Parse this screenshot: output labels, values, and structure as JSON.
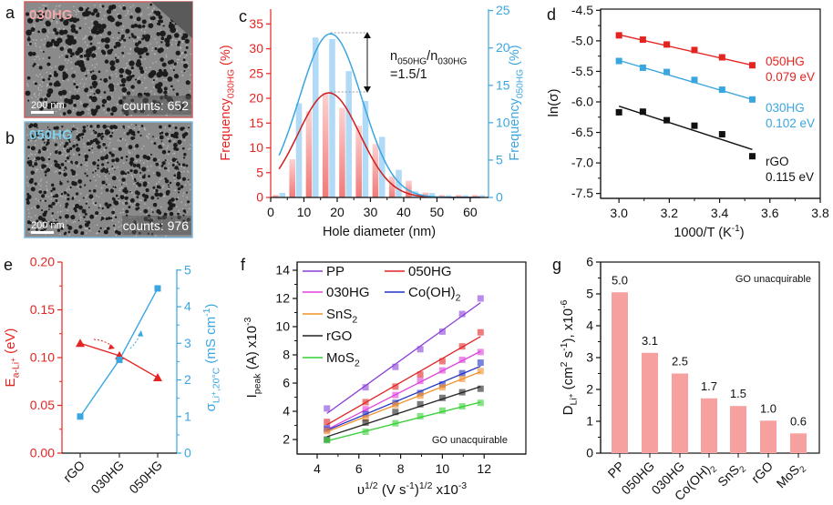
{
  "panel_letters": {
    "a": "a",
    "b": "b",
    "c": "c",
    "d": "d",
    "e": "e",
    "f": "f",
    "g": "g"
  },
  "colors": {
    "red": "#e52421",
    "blue": "#3aa6e0",
    "black": "#111111",
    "bar_red": "#f6a19f",
    "bar_blue": "#a9d6f5"
  },
  "sem_images": [
    {
      "label": "030HG",
      "scale": "200 nm",
      "counts": "counts: 652",
      "border": "#c9605f",
      "label_color": "#f0a8a8"
    },
    {
      "label": "050HG",
      "scale": "200 nm",
      "counts": "counts: 976",
      "border": "#7fb9dc",
      "label_color": "#7fd0ee"
    }
  ],
  "chart_data": [
    {
      "id": "c",
      "type": "bar",
      "xlabel": "Hole diameter (nm)",
      "ylabel": [
        [
          "Frequency",
          ""
        ],
        [
          "030HG",
          "sub"
        ],
        [
          " (%)",
          ""
        ]
      ],
      "y2label": [
        [
          "Frequency",
          ""
        ],
        [
          "050HG",
          "sub"
        ],
        [
          " (%)",
          ""
        ]
      ],
      "xlim": [
        0,
        65.5
      ],
      "ylim": [
        0,
        38
      ],
      "y2lim": [
        0,
        25.2
      ],
      "xticks": [
        0,
        10,
        20,
        30,
        40,
        50,
        60
      ],
      "yticks": [
        0,
        5,
        10,
        15,
        20,
        25,
        30,
        35
      ],
      "y2ticks": [
        0,
        5,
        10,
        15,
        20,
        25
      ],
      "bins": [
        2.5,
        7.5,
        12.5,
        17.5,
        22.5,
        27.5,
        32.5,
        37.5,
        42.5,
        47.5,
        52.5,
        57.5,
        62.5
      ],
      "series": [
        {
          "name": "030HG",
          "axis": "left",
          "values": [
            0.5,
            7.7,
            17.4,
            21.1,
            18.1,
            14.5,
            10.8,
            4.3,
            3.4,
            1.0,
            0.5,
            0.5,
            0.5
          ],
          "fit": {
            "peak": 21.1,
            "center": 17.5,
            "sigma": 9.3
          }
        },
        {
          "name": "050HG",
          "axis": "right",
          "values": [
            0.6,
            12.6,
            21.4,
            21.2,
            16.9,
            12.9,
            8.1,
            3.7,
            0.8,
            0.6,
            0.3,
            0.3,
            0.3
          ],
          "fit": {
            "peak": 21.9,
            "center": 18,
            "sigma": 9.4
          }
        }
      ],
      "annotation": {
        "line1": [
          [
            "n",
            ""
          ],
          [
            "050HG",
            "sub"
          ],
          [
            "/n",
            ""
          ],
          [
            "030HG",
            "sub"
          ]
        ],
        "line2": "=1.5/1"
      }
    },
    {
      "id": "d",
      "type": "scatter",
      "xlabel": [
        [
          "1000/T (K",
          ""
        ],
        [
          "-1",
          "sup"
        ],
        [
          ")",
          ""
        ]
      ],
      "ylabel": "ln(σ)",
      "xlim": [
        2.927,
        3.8
      ],
      "ylim": [
        -7.58,
        -4.48
      ],
      "xticks": [
        3.0,
        3.2,
        3.4,
        3.6,
        3.8
      ],
      "yticks": [
        -7.5,
        -7.0,
        -6.5,
        -6.0,
        -5.5,
        -5.0,
        -4.5
      ],
      "x": [
        3.0,
        3.095,
        3.19,
        3.3,
        3.41,
        3.53
      ],
      "series": [
        {
          "name": "050HG",
          "energy": "0.079 eV",
          "color": "#e52421",
          "values": [
            -4.91,
            -4.98,
            -5.06,
            -5.15,
            -5.27,
            -5.4
          ],
          "fit": [
            -4.9,
            -5.4
          ]
        },
        {
          "name": "030HG",
          "energy": "0.102 eV",
          "color": "#3aa6e0",
          "values": [
            -5.33,
            -5.44,
            -5.51,
            -5.64,
            -5.8,
            -5.96
          ],
          "fit": [
            -5.32,
            -5.96
          ]
        },
        {
          "name": "rGO",
          "energy": "0.115 eV",
          "color": "#111111",
          "values": [
            -6.17,
            -6.16,
            -6.3,
            -6.39,
            -6.53,
            -6.89
          ],
          "fit": [
            -6.07,
            -6.78
          ]
        }
      ]
    },
    {
      "id": "e",
      "type": "line",
      "categories": [
        "rGO",
        "030HG",
        "050HG"
      ],
      "ylabel": [
        [
          "E",
          ""
        ],
        [
          "a-Li",
          "sub"
        ],
        [
          "+",
          "subsup"
        ],
        [
          " (eV)",
          ""
        ]
      ],
      "y2label": [
        [
          "σ",
          ""
        ],
        [
          "Li",
          "sub"
        ],
        [
          "+",
          "subsup"
        ],
        [
          ",20°C",
          "sub"
        ],
        [
          " (mS cm",
          ""
        ],
        [
          "-1",
          "sup"
        ],
        [
          ")",
          ""
        ]
      ],
      "ylim": [
        0,
        0.2
      ],
      "y2lim": [
        0,
        5.22
      ],
      "yticks": [
        0.0,
        0.05,
        0.1,
        0.15,
        0.2
      ],
      "y2ticks": [
        0,
        1,
        2,
        3,
        4,
        5
      ],
      "series": [
        {
          "name": "Ea-Li+",
          "axis": "left",
          "values": [
            0.115,
            0.102,
            0.079
          ]
        },
        {
          "name": "σLi+,20°C",
          "axis": "right",
          "values": [
            1.0,
            2.55,
            4.5
          ]
        }
      ]
    },
    {
      "id": "f",
      "type": "scatter",
      "xlabel": [
        [
          "υ",
          ""
        ],
        [
          "1/2",
          "sup"
        ],
        [
          " (V s",
          ""
        ],
        [
          "-1",
          "sup"
        ],
        [
          ")",
          ""
        ],
        [
          "1/2",
          "sup"
        ],
        [
          " x10",
          ""
        ],
        [
          "-3",
          "sup"
        ]
      ],
      "ylabel": [
        [
          "I",
          ""
        ],
        [
          "peak",
          "sub"
        ],
        [
          " (A) x10",
          ""
        ],
        [
          "-3",
          "sup"
        ]
      ],
      "xlim": [
        3.04,
        14.0
      ],
      "ylim": [
        0.97,
        14.58
      ],
      "xticks": [
        4,
        6,
        8,
        10,
        12
      ],
      "yticks": [
        2,
        4,
        6,
        8,
        10,
        12,
        14
      ],
      "x": [
        4.47,
        6.32,
        7.75,
        8.94,
        10.0,
        10.95,
        11.83
      ],
      "note": "GO unacquirable",
      "series": [
        {
          "name": [
            [
              "PP",
              ""
            ]
          ],
          "color": "#8a3fd8",
          "values": [
            4.2,
            5.7,
            7.15,
            8.4,
            9.65,
            10.9,
            12.0
          ],
          "fit": [
            3.85,
            11.7
          ]
        },
        {
          "name": [
            [
              "050HG",
              ""
            ]
          ],
          "color": "#e02424",
          "values": [
            3.25,
            4.65,
            5.75,
            6.6,
            7.55,
            8.6,
            9.6
          ],
          "fit": [
            3.05,
            9.3
          ]
        },
        {
          "name": [
            [
              "030HG",
              ""
            ]
          ],
          "color": "#e040dc",
          "values": [
            2.7,
            4.15,
            5.15,
            6.15,
            6.9,
            7.65,
            8.2
          ],
          "fit": [
            2.7,
            8.25
          ]
        },
        {
          "name": [
            [
              "Co(OH)",
              ""
            ],
            [
              "2",
              "sub"
            ]
          ],
          "color": "#2232c4",
          "values": [
            2.8,
            3.8,
            4.6,
            5.3,
            5.9,
            6.7,
            7.45
          ],
          "fit": [
            2.65,
            7.2
          ]
        },
        {
          "name": [
            [
              "SnS",
              ""
            ],
            [
              "2",
              "sub"
            ]
          ],
          "color": "#f0902a",
          "values": [
            2.6,
            3.5,
            4.45,
            5.1,
            5.7,
            6.3,
            6.85
          ],
          "fit": [
            2.55,
            6.8
          ]
        },
        {
          "name": [
            [
              "rGO",
              ""
            ]
          ],
          "color": "#222222",
          "values": [
            2.0,
            3.2,
            3.95,
            4.5,
            4.95,
            5.35,
            5.6
          ],
          "fit": [
            2.2,
            5.75
          ]
        },
        {
          "name": [
            [
              "MoS",
              ""
            ],
            [
              "2",
              "sub"
            ]
          ],
          "color": "#34d034",
          "values": [
            1.95,
            2.55,
            3.15,
            3.65,
            4.05,
            4.35,
            4.6
          ],
          "fit": [
            1.9,
            4.65
          ]
        }
      ]
    },
    {
      "id": "g",
      "type": "bar",
      "ylabel": [
        [
          "D",
          ""
        ],
        [
          "Li",
          "sub"
        ],
        [
          "+",
          "subsup"
        ],
        [
          " (cm",
          ""
        ],
        [
          "2",
          "sup"
        ],
        [
          " s",
          ""
        ],
        [
          "-1",
          "sup"
        ],
        [
          "), x10",
          ""
        ],
        [
          "-6",
          "sup"
        ]
      ],
      "ylim": [
        0,
        6
      ],
      "yticks": [
        0,
        1,
        2,
        3,
        4,
        5,
        6
      ],
      "note": "GO unacquirable",
      "categories": [
        [
          [
            "PP",
            ""
          ]
        ],
        [
          [
            "050HG",
            ""
          ]
        ],
        [
          [
            "030HG",
            ""
          ]
        ],
        [
          [
            "Co(OH)",
            ""
          ],
          [
            "2",
            "sub"
          ]
        ],
        [
          [
            "SnS",
            ""
          ],
          [
            "2",
            "sub"
          ]
        ],
        [
          [
            "rGO",
            ""
          ]
        ],
        [
          [
            "MoS",
            ""
          ],
          [
            "2",
            "sub"
          ]
        ]
      ],
      "values": [
        5.05,
        3.15,
        2.5,
        1.72,
        1.48,
        1.02,
        0.62
      ],
      "labels": [
        "5.0",
        "3.1",
        "2.5",
        "1.7",
        "1.5",
        "1.0",
        "0.6"
      ]
    }
  ]
}
